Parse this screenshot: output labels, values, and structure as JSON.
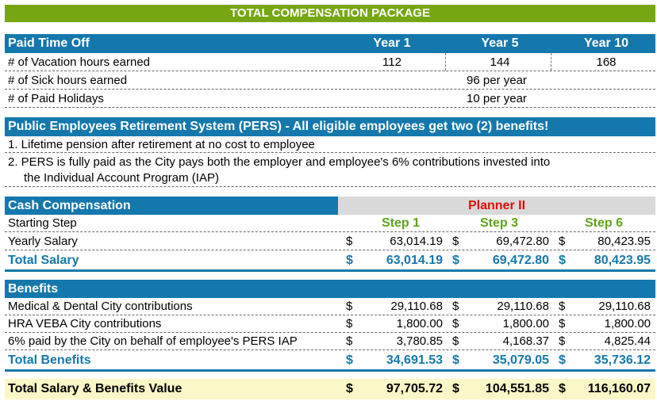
{
  "title": "TOTAL COMPENSATION PACKAGE",
  "pto": {
    "header": "Paid Time Off",
    "cols": [
      "Year 1",
      "Year 5",
      "Year 10"
    ],
    "vacation_label": "# of Vacation hours earned",
    "vacation": [
      "112",
      "144",
      "168"
    ],
    "sick_label": "# of Sick hours earned",
    "sick": "96 per year",
    "holidays_label": "# of Paid Holidays",
    "holidays": "10 per year"
  },
  "pers": {
    "header": "Public Employees Retirement System (PERS) - All eligible employees get two (2) benefits!",
    "item1": "1. Lifetime pension after retirement at no cost to employee",
    "item2a": "2.  PERS is fully paid as the City pays both the employer and employee's 6% contributions invested into",
    "item2b": "the Individual Account Program (IAP)"
  },
  "cash": {
    "header": "Cash Compensation",
    "position": "Planner II",
    "step_label": "Starting Step",
    "steps": [
      "Step 1",
      "Step 3",
      "Step 6"
    ],
    "salary_label": "Yearly Salary",
    "salary": [
      "63,014.19",
      "69,472.80",
      "80,423.95"
    ],
    "total_label": "Total Salary",
    "total": [
      "63,014.19",
      "69,472.80",
      "80,423.95"
    ]
  },
  "benefits": {
    "header": "Benefits",
    "rows": [
      {
        "label": "Medical & Dental City contributions",
        "values": [
          "29,110.68",
          "29,110.68",
          "29,110.68"
        ]
      },
      {
        "label": "HRA VEBA City contributions",
        "values": [
          "1,800.00",
          "1,800.00",
          "1,800.00"
        ]
      },
      {
        "label": "6% paid by the City on behalf of employee's PERS IAP",
        "values": [
          "3,780.85",
          "4,168.37",
          "4,825.44"
        ]
      }
    ],
    "total_label": "Total Benefits",
    "total": [
      "34,691.53",
      "35,079.05",
      "35,736.12"
    ]
  },
  "grand": {
    "label": "Total Salary & Benefits Value",
    "values": [
      "97,705.72",
      "104,551.85",
      "116,160.07"
    ]
  },
  "currency": "$",
  "colors": {
    "green_bar": "#76a713",
    "blue_bar": "#1478ac",
    "grand_bg": "#fcf7c6",
    "red_text": "#e30d0d",
    "green_text": "#5ea41b"
  }
}
